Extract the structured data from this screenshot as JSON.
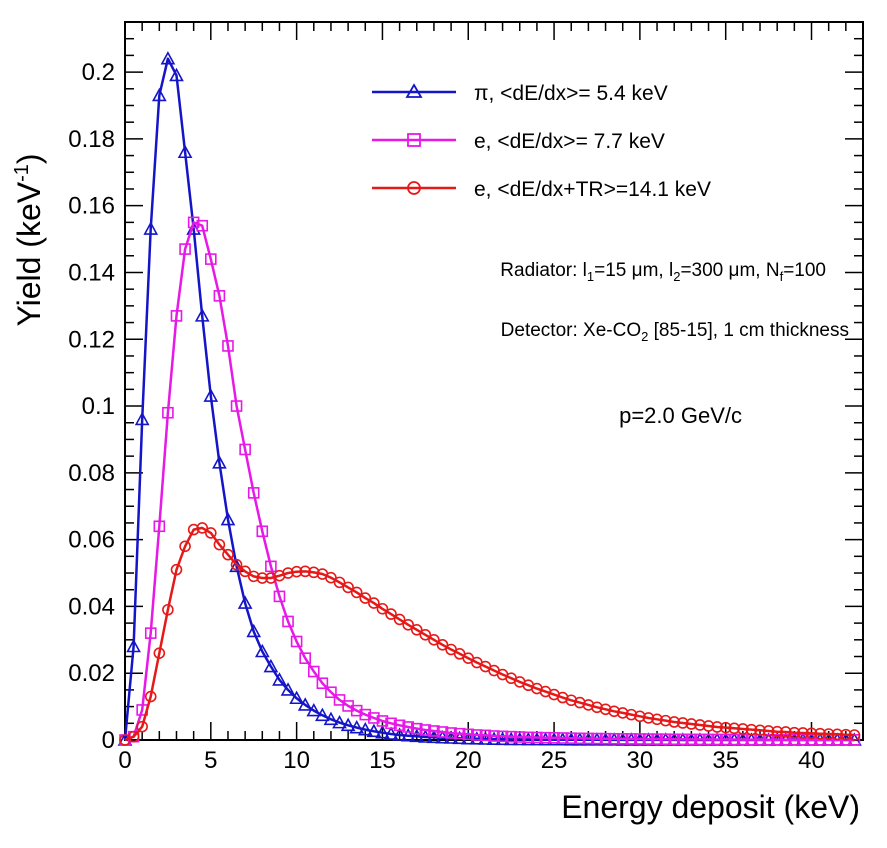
{
  "chart_data": {
    "type": "line",
    "title": "",
    "xlabel": "Energy deposit (keV)",
    "ylabel": "Yield (keV",
    "ylabel_sup": "-1",
    "ylabel_close": ")",
    "xlim": [
      0,
      43
    ],
    "ylim": [
      0,
      0.215
    ],
    "xticks": [
      0,
      5,
      10,
      15,
      20,
      25,
      30,
      35,
      40
    ],
    "xtick_labels": [
      "0",
      "5",
      "10",
      "15",
      "20",
      "25",
      "30",
      "35",
      "40"
    ],
    "yticks": [
      0,
      0.02,
      0.04,
      0.06,
      0.08,
      0.1,
      0.12,
      0.14,
      0.16,
      0.18,
      0.2
    ],
    "ytick_labels": [
      "0",
      "0.02",
      "0.04",
      "0.06",
      "0.08",
      "0.1",
      "0.12",
      "0.14",
      "0.16",
      "0.18",
      "0.2"
    ],
    "x": [
      0,
      0.5,
      1,
      1.5,
      2,
      2.5,
      3,
      3.5,
      4,
      4.5,
      5,
      5.5,
      6,
      6.5,
      7,
      7.5,
      8,
      8.5,
      9,
      9.5,
      10,
      10.5,
      11,
      11.5,
      12,
      12.5,
      13,
      13.5,
      14,
      14.5,
      15,
      15.5,
      16,
      16.5,
      17,
      17.5,
      18,
      18.5,
      19,
      19.5,
      20,
      20.5,
      21,
      21.5,
      22,
      22.5,
      23,
      23.5,
      24,
      24.5,
      25,
      25.5,
      26,
      26.5,
      27,
      27.5,
      28,
      28.5,
      29,
      29.5,
      30,
      30.5,
      31,
      31.5,
      32,
      32.5,
      33,
      33.5,
      34,
      34.5,
      35,
      35.5,
      36,
      36.5,
      37,
      37.5,
      38,
      38.5,
      39,
      39.5,
      40,
      40.5,
      41,
      41.5,
      42,
      42.5
    ],
    "series": [
      {
        "name": "π, <dE/dx>= 5.4 keV",
        "color": "#1515c8",
        "marker": "triangle",
        "values": [
          0,
          0.028,
          0.096,
          0.153,
          0.193,
          0.204,
          0.199,
          0.176,
          0.153,
          0.127,
          0.103,
          0.083,
          0.066,
          0.052,
          0.041,
          0.0325,
          0.0265,
          0.022,
          0.018,
          0.015,
          0.0125,
          0.0105,
          0.0088,
          0.0074,
          0.0062,
          0.0052,
          0.0044,
          0.0037,
          0.0031,
          0.0026,
          0.0022,
          0.0018,
          0.0015,
          0.0013,
          0.0011,
          0.0009,
          0.0008,
          0.0007,
          0.0006,
          0.0005,
          0.0004,
          0.00035,
          0.0003,
          0.00025,
          0.0002,
          0.00018,
          0.00015,
          0.00013,
          0.00011,
          0.0001,
          9e-05,
          8e-05,
          7e-05,
          6e-05,
          5e-05,
          5e-05,
          4e-05,
          4e-05,
          3e-05,
          3e-05,
          3e-05,
          2e-05,
          2e-05,
          2e-05,
          2e-05,
          1e-05,
          1e-05,
          1e-05,
          1e-05,
          1e-05,
          1e-05,
          1e-05,
          1e-05,
          0,
          0,
          0,
          0,
          0,
          0,
          0,
          0,
          0,
          0,
          0,
          0,
          0
        ]
      },
      {
        "name": "e, <dE/dx>= 7.7 keV",
        "color": "#e619e6",
        "marker": "square",
        "values": [
          0,
          0.001,
          0.009,
          0.032,
          0.064,
          0.098,
          0.127,
          0.147,
          0.155,
          0.154,
          0.144,
          0.133,
          0.118,
          0.1,
          0.087,
          0.074,
          0.0625,
          0.052,
          0.043,
          0.0355,
          0.0295,
          0.0245,
          0.0205,
          0.017,
          0.0143,
          0.012,
          0.0102,
          0.0088,
          0.0076,
          0.0066,
          0.0057,
          0.005,
          0.0044,
          0.0039,
          0.0034,
          0.003,
          0.0027,
          0.0024,
          0.0021,
          0.0019,
          0.0017,
          0.0015,
          0.0014,
          0.0012,
          0.0011,
          0.001,
          0.0009,
          0.0008,
          0.00075,
          0.0007,
          0.00065,
          0.0006,
          0.00055,
          0.0005,
          0.00046,
          0.00043,
          0.0004,
          0.00037,
          0.00034,
          0.00032,
          0.0003,
          0.00028,
          0.00026,
          0.00024,
          0.00022,
          0.0002,
          0.00019,
          0.00018,
          0.00017,
          0.00016,
          0.00015,
          0.00014,
          0.00013,
          0.00012,
          0.00011,
          0.0001,
          0.0001,
          9e-05,
          9e-05,
          8e-05,
          8e-05,
          7e-05,
          7e-05,
          6e-05,
          6e-05,
          6e-05
        ]
      },
      {
        "name": "e, <dE/dx+TR>=14.1 keV",
        "color": "#e61919",
        "marker": "circle",
        "values": [
          0,
          0.001,
          0.004,
          0.013,
          0.026,
          0.039,
          0.051,
          0.058,
          0.063,
          0.0635,
          0.062,
          0.0585,
          0.0555,
          0.0525,
          0.0505,
          0.049,
          0.0485,
          0.0485,
          0.0492,
          0.05,
          0.0504,
          0.0505,
          0.0502,
          0.0497,
          0.0486,
          0.0472,
          0.0457,
          0.0442,
          0.0425,
          0.041,
          0.0393,
          0.0377,
          0.0361,
          0.0345,
          0.033,
          0.0315,
          0.03,
          0.0285,
          0.0271,
          0.0258,
          0.0245,
          0.0232,
          0.022,
          0.0208,
          0.0196,
          0.0185,
          0.0174,
          0.0164,
          0.0154,
          0.0145,
          0.0136,
          0.0127,
          0.0119,
          0.0112,
          0.0105,
          0.0098,
          0.0092,
          0.0086,
          0.0081,
          0.0076,
          0.0071,
          0.0066,
          0.0062,
          0.0058,
          0.0054,
          0.0051,
          0.0048,
          0.0045,
          0.0042,
          0.0039,
          0.0037,
          0.0035,
          0.0033,
          0.0031,
          0.0029,
          0.0027,
          0.0025,
          0.0024,
          0.0022,
          0.0021,
          0.002,
          0.0019,
          0.0018,
          0.0017,
          0.0016,
          0.0015
        ]
      }
    ],
    "legend": {
      "placement": "top-right",
      "entries": [
        "π, <dE/dx>= 5.4 keV",
        "e, <dE/dx>= 7.7 keV",
        "e, <dE/dx+TR>=14.1 keV"
      ]
    },
    "annotations": {
      "radiator": {
        "prefix": "Radiator: l",
        "sub1": "1",
        "part1": "=15 μm, l",
        "sub2": "2",
        "part2": "=300 μm, N",
        "sub3": "f",
        "part3": "=100"
      },
      "detector": {
        "prefix": "Detector: Xe-CO",
        "sub": "2",
        "suffix": " [85-15], 1 cm thickness"
      },
      "momentum": "p=2.0 GeV/c"
    }
  }
}
